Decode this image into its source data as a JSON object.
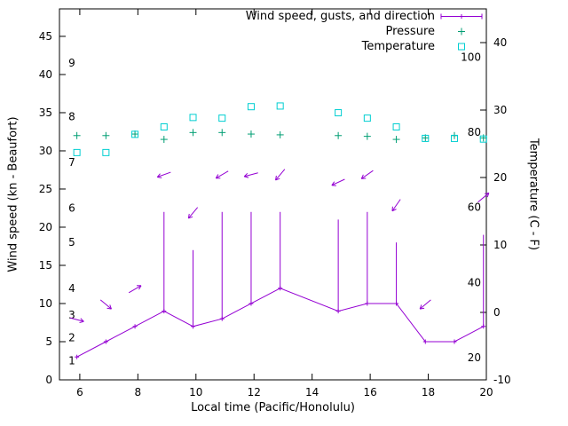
{
  "chart_data": {
    "type": "line",
    "title": "",
    "xlabel": "Local time (Pacific/Honolulu)",
    "ylabel_left": "Wind speed (kn - Beaufort)",
    "ylabel_right": "Temperature (C - F)",
    "xlim": [
      5.3,
      20
    ],
    "ylim_left": [
      0,
      48.6
    ],
    "ylim_right": [
      -10,
      45
    ],
    "x_ticks": [
      6,
      8,
      10,
      12,
      14,
      16,
      18,
      20
    ],
    "y_ticks_left": [
      0,
      5,
      10,
      15,
      20,
      25,
      30,
      35,
      40,
      45
    ],
    "y_ticks_right": [
      -10,
      0,
      10,
      20,
      30,
      40
    ],
    "beaufort_scale": {
      "labels": [
        "1",
        "2",
        "3",
        "4",
        "5",
        "6",
        "7",
        "8",
        "9"
      ],
      "positions_kn": [
        2.5,
        5.5,
        8.5,
        12,
        18,
        22.5,
        28.5,
        34.5,
        41.5
      ]
    },
    "fahrenheit_scale": {
      "labels": [
        "20",
        "40",
        "60",
        "80",
        "100"
      ],
      "positions_c": [
        -6.7,
        4.4,
        15.6,
        26.7,
        37.8
      ]
    },
    "grid": false,
    "legend_position": "top-right",
    "series": [
      {
        "name": "Wind speed, gusts, and direction",
        "type": "line+vectors",
        "axis": "left",
        "color": "#9400d3",
        "x": [
          5.9,
          6.9,
          7.9,
          8.9,
          9.9,
          10.9,
          11.9,
          12.9,
          14.9,
          15.9,
          16.9,
          17.9,
          18.9,
          19.9
        ],
        "speed_kn": [
          3,
          5,
          7,
          9,
          7,
          8,
          10,
          12,
          9,
          10,
          10,
          5,
          5,
          7
        ],
        "gust_kn": [
          null,
          null,
          null,
          22,
          17,
          22,
          22,
          22,
          21,
          22,
          18,
          null,
          null,
          19
        ],
        "direction_deg": [
          345,
          320,
          30,
          200,
          230,
          210,
          195,
          230,
          205,
          215,
          235,
          220,
          null,
          40
        ]
      },
      {
        "name": "Pressure",
        "type": "points",
        "marker": "plus",
        "axis": "left",
        "color": "#009e73",
        "x": [
          5.9,
          6.9,
          7.9,
          8.9,
          9.9,
          10.9,
          11.9,
          12.9,
          14.9,
          15.9,
          16.9,
          17.9,
          18.9,
          19.9
        ],
        "y": [
          32,
          32,
          32.2,
          31.5,
          32.4,
          32.4,
          32.2,
          32.1,
          32,
          31.9,
          31.5,
          31.7,
          32,
          31.7
        ]
      },
      {
        "name": "Temperature",
        "type": "points",
        "marker": "open-square",
        "axis": "right",
        "color": "#00ced1",
        "x": [
          5.9,
          6.9,
          7.9,
          8.9,
          9.9,
          10.9,
          11.9,
          12.9,
          14.9,
          15.9,
          16.9,
          17.9,
          18.9,
          19.9
        ],
        "y_c": [
          23.7,
          23.7,
          26.4,
          27.5,
          28.9,
          28.8,
          30.5,
          30.6,
          29.6,
          28.8,
          27.5,
          25.8,
          25.8,
          25.7
        ]
      }
    ]
  }
}
